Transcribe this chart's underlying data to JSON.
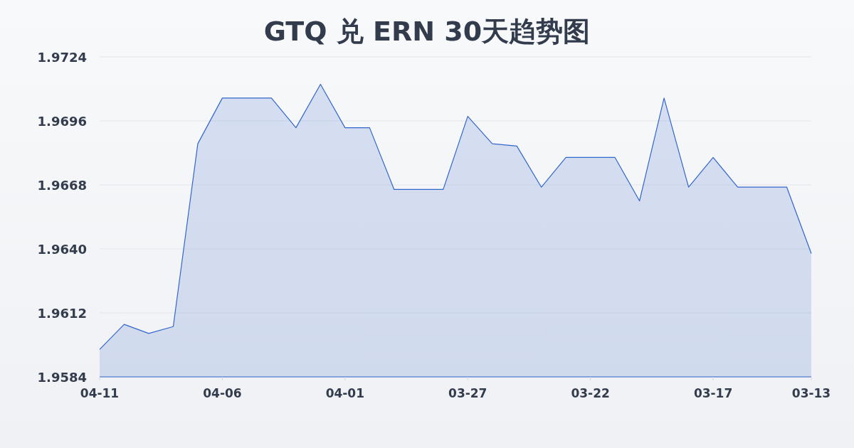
{
  "chart_data": {
    "type": "area",
    "title": "GTQ 兑 ERN 30天趋势图",
    "categories": [
      "04-11",
      null,
      null,
      null,
      null,
      "04-06",
      null,
      null,
      null,
      null,
      "04-01",
      null,
      null,
      null,
      null,
      "03-27",
      null,
      null,
      null,
      null,
      "03-22",
      null,
      null,
      null,
      null,
      "03-17",
      null,
      null,
      null,
      "03-13"
    ],
    "values": [
      1.9596,
      1.9607,
      1.9603,
      1.9606,
      1.9686,
      1.9706,
      1.9706,
      1.9706,
      1.9693,
      1.9712,
      1.9693,
      1.9693,
      1.9666,
      1.9666,
      1.9666,
      1.9698,
      1.9686,
      1.9685,
      1.9667,
      1.968,
      1.968,
      1.968,
      1.9661,
      1.9706,
      1.9667,
      1.968,
      1.9667,
      1.9667,
      1.9667,
      1.9638
    ],
    "color": "#3366cc",
    "ylim": [
      1.9584,
      1.9724
    ],
    "yticks": [
      1.9584,
      1.9612,
      {
        "value": 1.964,
        "label": "1.9640"
      },
      1.9668,
      1.9696,
      1.9724
    ],
    "grid": "y"
  }
}
